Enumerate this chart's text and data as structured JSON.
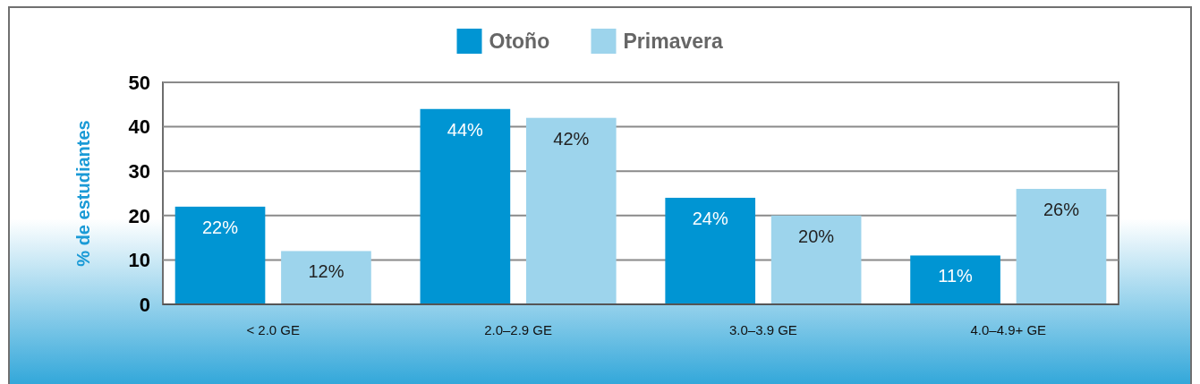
{
  "chart_data": {
    "type": "bar",
    "ylabel": "% de estudiantes",
    "categories": [
      "< 2.0 GE",
      "2.0–2.9 GE",
      "3.0–3.9 GE",
      "4.0–4.9+ GE"
    ],
    "series": [
      {
        "name": "Otoño",
        "color": "#0095d3",
        "values": [
          22,
          44,
          24,
          11
        ],
        "value_labels": [
          "22%",
          "44%",
          "24%",
          "11%"
        ]
      },
      {
        "name": "Primavera",
        "color": "#9dd4ec",
        "values": [
          12,
          42,
          20,
          26
        ],
        "value_labels": [
          "12%",
          "42%",
          "20%",
          "26%"
        ]
      }
    ],
    "ylim": [
      0,
      50
    ],
    "yticks": [
      0,
      10,
      20,
      30,
      40,
      50
    ],
    "grid": "y",
    "legend": "top"
  }
}
